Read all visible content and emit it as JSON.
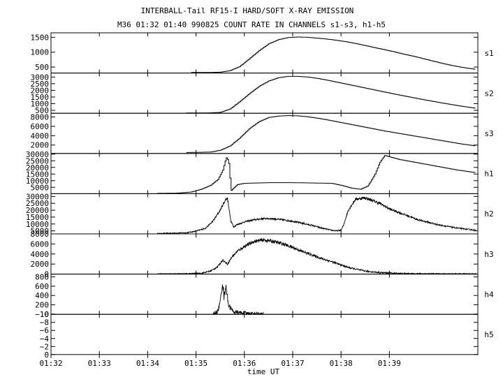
{
  "chart_data": {
    "type": "line",
    "title": "INTERBALL-Tail RF15-I HARD/SOFT X-RAY EMISSION",
    "subtitle": "M36  01:32 01:40 990825  COUNT RATE IN CHANNELS s1-s3, h1-h5",
    "xlabel": "time UT",
    "x_unit": "minutes",
    "xlim": [
      0,
      8.83
    ],
    "x_ticks": [
      {
        "x": 0,
        "label": "01:32"
      },
      {
        "x": 1,
        "label": "01:33"
      },
      {
        "x": 2,
        "label": "01:34"
      },
      {
        "x": 3,
        "label": "01:35"
      },
      {
        "x": 4,
        "label": "01:36"
      },
      {
        "x": 5,
        "label": "01:37"
      },
      {
        "x": 6,
        "label": "01:38"
      },
      {
        "x": 7,
        "label": "01:39"
      }
    ],
    "panels": [
      {
        "name": "s1",
        "ylim": [
          300,
          1650
        ],
        "yticks": [
          500,
          1000,
          1500
        ],
        "step": true,
        "noise": 0,
        "x": [
          2.9,
          3.3,
          3.5,
          3.7,
          3.9,
          4.1,
          4.3,
          4.5,
          4.7,
          4.9,
          5.1,
          5.3,
          5.5,
          5.7,
          5.9,
          6.1,
          6.3,
          6.5,
          6.7,
          6.9,
          7.1,
          7.3,
          7.5,
          7.7,
          7.9,
          8.1,
          8.3,
          8.5,
          8.79
        ],
        "y": [
          320,
          320,
          330,
          380,
          520,
          780,
          1050,
          1280,
          1420,
          1490,
          1510,
          1500,
          1470,
          1440,
          1400,
          1350,
          1290,
          1220,
          1150,
          1080,
          1010,
          930,
          860,
          780,
          700,
          620,
          550,
          490,
          420
        ]
      },
      {
        "name": "s2",
        "ylim": [
          280,
          3300
        ],
        "yticks": [
          500,
          1000,
          1500,
          2000,
          2500,
          3000
        ],
        "step": true,
        "noise": 0,
        "x": [
          2.8,
          3.3,
          3.5,
          3.7,
          3.9,
          4.1,
          4.3,
          4.5,
          4.7,
          4.9,
          5.1,
          5.3,
          5.5,
          5.7,
          5.9,
          6.1,
          6.3,
          6.5,
          6.7,
          6.9,
          7.1,
          7.3,
          7.5,
          7.7,
          7.9,
          8.1,
          8.3,
          8.5,
          8.79
        ],
        "y": [
          300,
          310,
          350,
          600,
          1150,
          1750,
          2300,
          2700,
          2950,
          3050,
          3050,
          3000,
          2900,
          2770,
          2620,
          2470,
          2320,
          2170,
          2020,
          1870,
          1720,
          1580,
          1440,
          1300,
          1170,
          1040,
          920,
          800,
          650
        ]
      },
      {
        "name": "s3",
        "ylim": [
          200,
          8800
        ],
        "yticks": [
          2000,
          4000,
          6000,
          8000
        ],
        "step": true,
        "noise": 0,
        "x": [
          2.8,
          3.3,
          3.5,
          3.7,
          3.9,
          4.1,
          4.3,
          4.5,
          4.7,
          4.9,
          5.1,
          5.3,
          5.5,
          5.7,
          5.9,
          6.1,
          6.3,
          6.5,
          6.7,
          6.9,
          7.1,
          7.3,
          7.5,
          7.7,
          7.9,
          8.1,
          8.3,
          8.5,
          8.79
        ],
        "y": [
          400,
          500,
          900,
          1800,
          3500,
          5500,
          7000,
          7900,
          8200,
          8300,
          8250,
          8050,
          7750,
          7400,
          7000,
          6600,
          6200,
          5800,
          5400,
          5000,
          4650,
          4300,
          3950,
          3600,
          3250,
          2900,
          2550,
          2200,
          1800
        ]
      },
      {
        "name": "h1",
        "ylim": [
          200,
          30500
        ],
        "yticks": [
          5000,
          10000,
          15000,
          20000,
          25000,
          30000
        ],
        "step": true,
        "noise": 0,
        "x": [
          2.2,
          2.6,
          2.9,
          3.1,
          3.3,
          3.45,
          3.55,
          3.62,
          3.67,
          3.7,
          3.72,
          3.85,
          4.0,
          4.5,
          5.0,
          5.5,
          5.8,
          6.0,
          6.2,
          6.4,
          6.55,
          6.7,
          6.8,
          6.9,
          7.0,
          7.2,
          7.5,
          7.8,
          8.1,
          8.4,
          8.79
        ],
        "y": [
          400,
          600,
          1500,
          3500,
          6500,
          11000,
          18000,
          27500,
          25000,
          12000,
          2500,
          7000,
          8000,
          8500,
          8500,
          8200,
          8000,
          6500,
          4500,
          3500,
          6000,
          15000,
          24000,
          29000,
          28000,
          26000,
          24000,
          22000,
          20000,
          18000,
          16000
        ]
      },
      {
        "name": "h2",
        "ylim": [
          2800,
          32000
        ],
        "yticks": [
          5000,
          10000,
          15000,
          20000,
          25000,
          30000
        ],
        "step": false,
        "noise": 0.04,
        "x": [
          2.2,
          2.8,
          3.0,
          3.2,
          3.35,
          3.5,
          3.6,
          3.65,
          3.68,
          3.72,
          3.78,
          3.85,
          4.0,
          4.2,
          4.4,
          4.6,
          4.8,
          5.0,
          5.2,
          5.4,
          5.6,
          5.8,
          5.9,
          6.0,
          6.05,
          6.15,
          6.3,
          6.5,
          6.8,
          7.0,
          7.3,
          7.6,
          8.0,
          8.4,
          8.79
        ],
        "y": [
          3000,
          3600,
          4800,
          7000,
          12000,
          20000,
          27000,
          29000,
          22000,
          12000,
          8000,
          9500,
          11500,
          13000,
          14000,
          13800,
          13000,
          12000,
          10500,
          9000,
          7000,
          5500,
          5000,
          5500,
          9000,
          20000,
          28000,
          29000,
          25000,
          21000,
          17000,
          13000,
          9500,
          7000,
          5500
        ]
      },
      {
        "name": "h3",
        "ylim": [
          0,
          8000
        ],
        "yticks": [
          0,
          2000,
          4000,
          6000,
          8000
        ],
        "step": false,
        "noise": 0.05,
        "x": [
          2.2,
          2.8,
          3.1,
          3.3,
          3.45,
          3.55,
          3.65,
          3.75,
          3.85,
          4.0,
          4.2,
          4.4,
          4.6,
          4.8,
          5.0,
          5.2,
          5.4,
          5.6,
          5.8,
          6.0,
          6.2,
          6.5,
          6.8,
          7.2,
          7.6,
          8.0,
          8.79
        ],
        "y": [
          0,
          50,
          150,
          600,
          1500,
          2800,
          2000,
          3500,
          4500,
          5500,
          6500,
          6800,
          6500,
          6000,
          5300,
          4500,
          3800,
          3100,
          2500,
          1800,
          1200,
          600,
          300,
          150,
          80,
          40,
          30
        ]
      },
      {
        "name": "h4",
        "ylim": [
          -5,
          860
        ],
        "yticks": [
          0,
          200,
          400,
          600,
          800
        ],
        "step": false,
        "noise": 0.15,
        "x": [
          3.35,
          3.45,
          3.5,
          3.55,
          3.58,
          3.62,
          3.66,
          3.7,
          3.75,
          3.8,
          3.9,
          4.0,
          4.1,
          4.2,
          4.3,
          4.4
        ],
        "y": [
          0,
          60,
          250,
          700,
          350,
          650,
          250,
          150,
          80,
          40,
          30,
          20,
          15,
          10,
          5,
          0
        ]
      },
      {
        "name": "h5",
        "ylim": [
          0,
          10
        ],
        "yticks": [
          0,
          2,
          4,
          6,
          8,
          10
        ],
        "ytick_labels": [
          "0",
          "−2",
          "−4",
          "−6",
          "−8",
          "−10"
        ],
        "step": false,
        "noise": 0,
        "x": [],
        "y": []
      }
    ]
  }
}
